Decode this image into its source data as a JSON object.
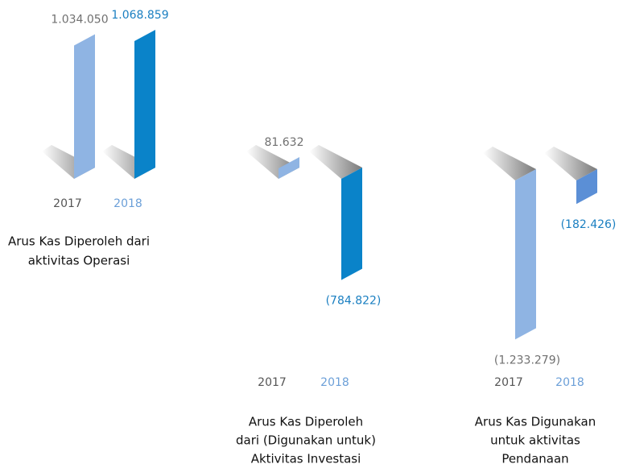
{
  "chart_data": [
    {
      "type": "bar",
      "title": [
        "Arus Kas Diperoleh dari",
        "aktivitas Operasi"
      ],
      "categories": [
        "2017",
        "2018"
      ],
      "values": [
        1034050,
        1068859
      ],
      "value_labels": [
        "1.034.050",
        "1.068.859"
      ],
      "colors": [
        "#8fb4e3",
        "#0a83c9"
      ]
    },
    {
      "type": "bar",
      "title": [
        "Arus Kas Diperoleh",
        "dari (Digunakan untuk)",
        "Aktivitas Investasi"
      ],
      "categories": [
        "2017",
        "2018"
      ],
      "values": [
        81632,
        -784822
      ],
      "value_labels": [
        "81.632",
        "(784.822)"
      ],
      "colors": [
        "#8fb4e3",
        "#0a83c9"
      ]
    },
    {
      "type": "bar",
      "title": [
        "Arus Kas Digunakan",
        "untuk aktivitas",
        "Pendanaan"
      ],
      "categories": [
        "2017",
        "2018"
      ],
      "values": [
        -1233279,
        -182426
      ],
      "value_labels": [
        "(1.233.279)",
        "(182.426)"
      ],
      "colors": [
        "#8fb4e3",
        "#5b8fd6"
      ]
    }
  ]
}
